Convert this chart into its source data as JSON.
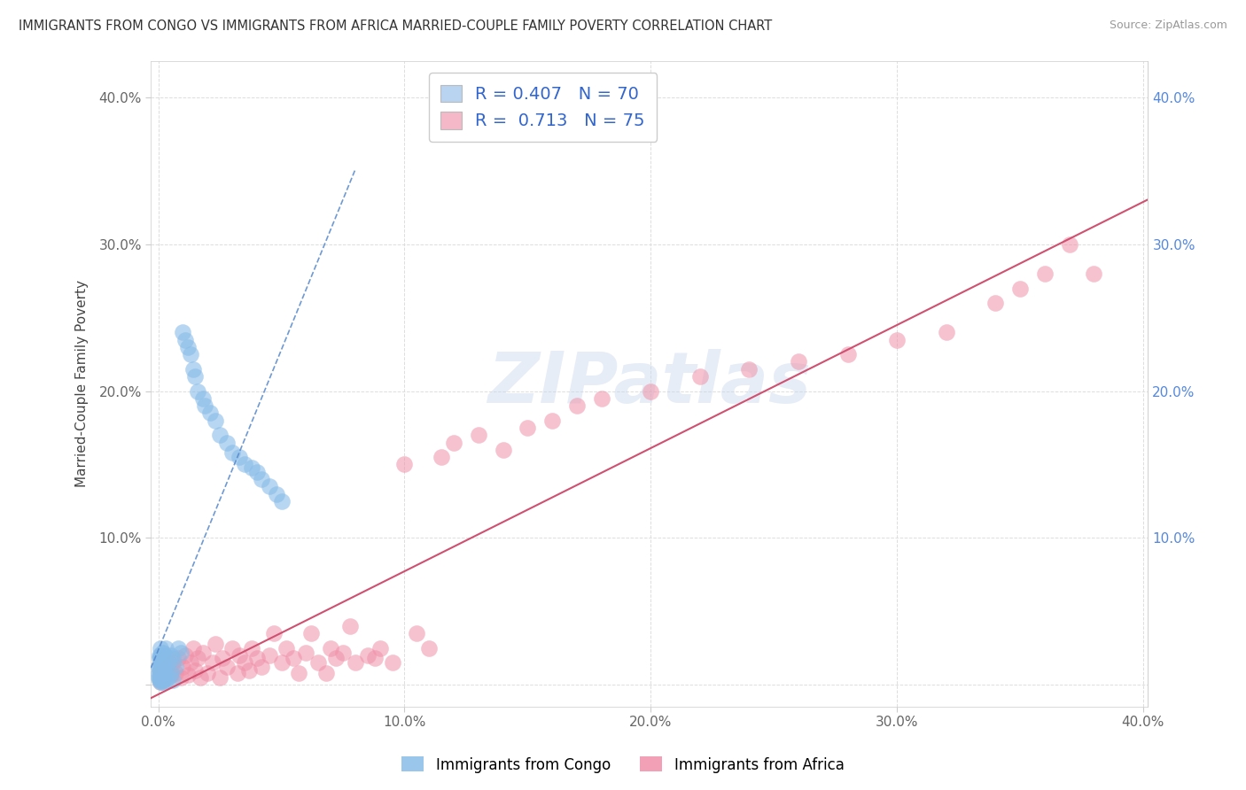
{
  "title": "IMMIGRANTS FROM CONGO VS IMMIGRANTS FROM AFRICA MARRIED-COUPLE FAMILY POVERTY CORRELATION CHART",
  "source": "Source: ZipAtlas.com",
  "ylabel": "Married-Couple Family Poverty",
  "xlim": [
    -0.003,
    0.402
  ],
  "ylim": [
    -0.015,
    0.425
  ],
  "xticks": [
    0.0,
    0.1,
    0.2,
    0.3,
    0.4
  ],
  "yticks": [
    0.0,
    0.1,
    0.2,
    0.3,
    0.4
  ],
  "xtick_labels": [
    "0.0%",
    "10.0%",
    "20.0%",
    "30.0%",
    "40.0%"
  ],
  "ytick_labels_left": [
    "",
    "10.0%",
    "20.0%",
    "30.0%",
    "40.0%"
  ],
  "ytick_labels_right": [
    "",
    "10.0%",
    "20.0%",
    "30.0%",
    "40.0%"
  ],
  "legend_label1": "R = 0.407   N = 70",
  "legend_label2": "R =  0.713   N = 75",
  "legend_color1": "#b8d4f0",
  "legend_color2": "#f5b8c8",
  "scatter1_color": "#88bce8",
  "scatter2_color": "#f090a8",
  "line1_color": "#5588cc",
  "line2_color": "#d05070",
  "watermark_text": "ZIPatlas",
  "legend1_text": "Immigrants from Congo",
  "legend2_text": "Immigrants from Africa",
  "congo_x": [
    0.0002,
    0.0003,
    0.0003,
    0.0004,
    0.0005,
    0.0005,
    0.0006,
    0.0006,
    0.0007,
    0.0007,
    0.0008,
    0.0008,
    0.0009,
    0.0009,
    0.001,
    0.001,
    0.001,
    0.001,
    0.001,
    0.001,
    0.0012,
    0.0012,
    0.0013,
    0.0014,
    0.0015,
    0.0015,
    0.0016,
    0.0017,
    0.0018,
    0.002,
    0.002,
    0.002,
    0.002,
    0.0022,
    0.0025,
    0.0025,
    0.003,
    0.003,
    0.003,
    0.004,
    0.004,
    0.005,
    0.005,
    0.006,
    0.006,
    0.007,
    0.008,
    0.009,
    0.01,
    0.011,
    0.012,
    0.013,
    0.014,
    0.015,
    0.016,
    0.018,
    0.019,
    0.021,
    0.023,
    0.025,
    0.028,
    0.03,
    0.033,
    0.035,
    0.038,
    0.04,
    0.042,
    0.045,
    0.048,
    0.05
  ],
  "congo_y": [
    0.005,
    0.008,
    0.012,
    0.018,
    0.005,
    0.01,
    0.003,
    0.02,
    0.008,
    0.015,
    0.003,
    0.012,
    0.005,
    0.018,
    0.002,
    0.005,
    0.01,
    0.015,
    0.02,
    0.025,
    0.003,
    0.012,
    0.018,
    0.008,
    0.002,
    0.022,
    0.015,
    0.005,
    0.01,
    0.003,
    0.008,
    0.015,
    0.022,
    0.012,
    0.005,
    0.02,
    0.003,
    0.01,
    0.025,
    0.005,
    0.015,
    0.008,
    0.02,
    0.003,
    0.018,
    0.012,
    0.025,
    0.022,
    0.24,
    0.235,
    0.23,
    0.225,
    0.215,
    0.21,
    0.2,
    0.195,
    0.19,
    0.185,
    0.18,
    0.17,
    0.165,
    0.158,
    0.155,
    0.15,
    0.148,
    0.145,
    0.14,
    0.135,
    0.13,
    0.125
  ],
  "africa_x": [
    0.001,
    0.001,
    0.002,
    0.003,
    0.004,
    0.005,
    0.006,
    0.007,
    0.008,
    0.009,
    0.01,
    0.011,
    0.012,
    0.013,
    0.014,
    0.015,
    0.016,
    0.017,
    0.018,
    0.02,
    0.022,
    0.023,
    0.025,
    0.026,
    0.028,
    0.03,
    0.032,
    0.033,
    0.035,
    0.037,
    0.038,
    0.04,
    0.042,
    0.045,
    0.047,
    0.05,
    0.052,
    0.055,
    0.057,
    0.06,
    0.062,
    0.065,
    0.068,
    0.07,
    0.072,
    0.075,
    0.078,
    0.08,
    0.085,
    0.088,
    0.09,
    0.095,
    0.1,
    0.105,
    0.11,
    0.115,
    0.12,
    0.13,
    0.14,
    0.15,
    0.16,
    0.17,
    0.18,
    0.2,
    0.22,
    0.24,
    0.26,
    0.28,
    0.3,
    0.32,
    0.34,
    0.35,
    0.36,
    0.37,
    0.38
  ],
  "africa_y": [
    0.002,
    0.008,
    0.005,
    0.01,
    0.012,
    0.007,
    0.015,
    0.008,
    0.018,
    0.005,
    0.012,
    0.02,
    0.007,
    0.015,
    0.025,
    0.01,
    0.018,
    0.005,
    0.022,
    0.008,
    0.015,
    0.028,
    0.005,
    0.018,
    0.012,
    0.025,
    0.008,
    0.02,
    0.015,
    0.01,
    0.025,
    0.018,
    0.012,
    0.02,
    0.035,
    0.015,
    0.025,
    0.018,
    0.008,
    0.022,
    0.035,
    0.015,
    0.008,
    0.025,
    0.018,
    0.022,
    0.04,
    0.015,
    0.02,
    0.018,
    0.025,
    0.015,
    0.15,
    0.035,
    0.025,
    0.155,
    0.165,
    0.17,
    0.16,
    0.175,
    0.18,
    0.19,
    0.195,
    0.2,
    0.21,
    0.215,
    0.22,
    0.225,
    0.235,
    0.24,
    0.26,
    0.27,
    0.28,
    0.3,
    0.28
  ]
}
